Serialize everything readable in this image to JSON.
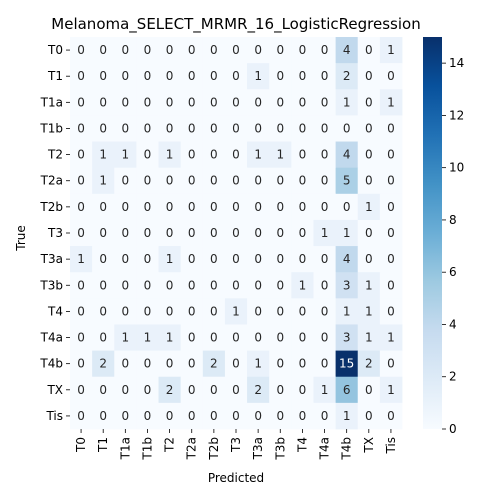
{
  "chart_data": {
    "type": "heatmap",
    "title": "Melanoma_SELECT_MRMR_16_LogisticRegression",
    "xlabel": "Predicted",
    "ylabel": "True",
    "labels": [
      "T0",
      "T1",
      "T1a",
      "T1b",
      "T2",
      "T2a",
      "T2b",
      "T3",
      "T3a",
      "T3b",
      "T4",
      "T4a",
      "T4b",
      "TX",
      "Tis"
    ],
    "matrix": [
      [
        0,
        0,
        0,
        0,
        0,
        0,
        0,
        0,
        0,
        0,
        0,
        0,
        4,
        0,
        1
      ],
      [
        0,
        0,
        0,
        0,
        0,
        0,
        0,
        0,
        1,
        0,
        0,
        0,
        2,
        0,
        0
      ],
      [
        0,
        0,
        0,
        0,
        0,
        0,
        0,
        0,
        0,
        0,
        0,
        0,
        1,
        0,
        1
      ],
      [
        0,
        0,
        0,
        0,
        0,
        0,
        0,
        0,
        0,
        0,
        0,
        0,
        0,
        0,
        0
      ],
      [
        0,
        1,
        1,
        0,
        1,
        0,
        0,
        0,
        1,
        1,
        0,
        0,
        4,
        0,
        0
      ],
      [
        0,
        1,
        0,
        0,
        0,
        0,
        0,
        0,
        0,
        0,
        0,
        0,
        5,
        0,
        0
      ],
      [
        0,
        0,
        0,
        0,
        0,
        0,
        0,
        0,
        0,
        0,
        0,
        0,
        0,
        1,
        0
      ],
      [
        0,
        0,
        0,
        0,
        0,
        0,
        0,
        0,
        0,
        0,
        0,
        1,
        1,
        0,
        0
      ],
      [
        1,
        0,
        0,
        0,
        1,
        0,
        0,
        0,
        0,
        0,
        0,
        0,
        4,
        0,
        0
      ],
      [
        0,
        0,
        0,
        0,
        0,
        0,
        0,
        0,
        0,
        0,
        1,
        0,
        3,
        1,
        0
      ],
      [
        0,
        0,
        0,
        0,
        0,
        0,
        0,
        1,
        0,
        0,
        0,
        0,
        1,
        1,
        0
      ],
      [
        0,
        0,
        1,
        1,
        1,
        0,
        0,
        0,
        0,
        0,
        0,
        0,
        3,
        1,
        1
      ],
      [
        0,
        2,
        0,
        0,
        0,
        0,
        2,
        0,
        1,
        0,
        0,
        0,
        15,
        2,
        0
      ],
      [
        0,
        0,
        0,
        0,
        2,
        0,
        0,
        0,
        2,
        0,
        0,
        1,
        6,
        0,
        1
      ],
      [
        0,
        0,
        0,
        0,
        0,
        0,
        0,
        0,
        0,
        0,
        0,
        0,
        1,
        0,
        0
      ]
    ],
    "colorbar": {
      "min": 0,
      "max": 15,
      "ticks": [
        0,
        2,
        4,
        6,
        8,
        10,
        12,
        14
      ]
    },
    "colormap": "Blues",
    "colors": {
      "low": "#f7fbff",
      "high": "#08306b"
    }
  }
}
